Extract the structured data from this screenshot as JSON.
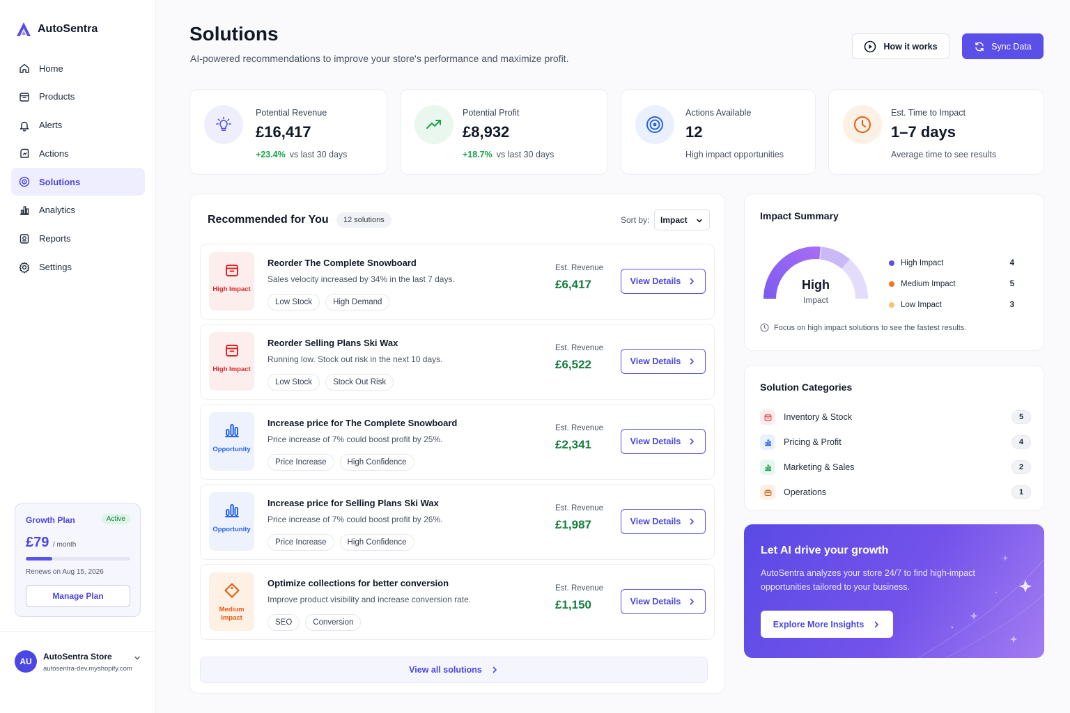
{
  "brand": {
    "name": "AutoSentra"
  },
  "nav": [
    {
      "label": "Home",
      "icon": "home-icon"
    },
    {
      "label": "Products",
      "icon": "box-icon"
    },
    {
      "label": "Alerts",
      "icon": "bell-icon"
    },
    {
      "label": "Actions",
      "icon": "actions-icon"
    },
    {
      "label": "Solutions",
      "icon": "solutions-icon",
      "active": true
    },
    {
      "label": "Analytics",
      "icon": "bar-chart-icon"
    },
    {
      "label": "Reports",
      "icon": "report-icon"
    },
    {
      "label": "Settings",
      "icon": "gear-icon"
    }
  ],
  "plan": {
    "name": "Growth Plan",
    "status": "Active",
    "price": "£79",
    "period": "/ month",
    "usage_fraction": 0.25,
    "renews": "Renews on Aug 15, 2026",
    "manage_label": "Manage Plan"
  },
  "store": {
    "initials": "AU",
    "name": "AutoSentra Store",
    "url": "autosentra-dev.myshopify.com"
  },
  "header": {
    "title": "Solutions",
    "subtitle": "AI-powered recommendations to improve your store's performance and maximize profit.",
    "how_label": "How it works",
    "sync_label": "Sync Data"
  },
  "stats": [
    {
      "label": "Potential Revenue",
      "value": "£16,417",
      "change": "+23.4%",
      "foot": "vs last 30 days",
      "icon": "lightbulb-icon"
    },
    {
      "label": "Potential Profit",
      "value": "£8,932",
      "change": "+18.7%",
      "foot": "vs last 30 days",
      "icon": "trend-up-icon"
    },
    {
      "label": "Actions Available",
      "value": "12",
      "change": "",
      "foot": "High impact opportunities",
      "icon": "target-icon"
    },
    {
      "label": "Est. Time to Impact",
      "value": "1–7 days",
      "change": "",
      "foot": "Average time to see results",
      "icon": "clock-icon"
    }
  ],
  "recommended": {
    "title": "Recommended for You",
    "count": "12 solutions",
    "sort_label": "Sort by:",
    "sort_value": "Impact",
    "est_label": "Est. Revenue",
    "button_label": "View Details",
    "view_all": "View all solutions",
    "items": [
      {
        "badge": "High Impact",
        "kind": "high",
        "title": "Reorder The Complete Snowboard",
        "desc": "Sales velocity increased by 34% in the last 7 days.",
        "tags": [
          "Low Stock",
          "High Demand"
        ],
        "revenue": "£6,417"
      },
      {
        "badge": "High Impact",
        "kind": "high",
        "title": "Reorder Selling Plans Ski Wax",
        "desc": "Running low. Stock out risk in the next 10 days.",
        "tags": [
          "Low Stock",
          "Stock Out Risk"
        ],
        "revenue": "£6,522"
      },
      {
        "badge": "Opportunity",
        "kind": "opp",
        "title": "Increase price for The Complete Snowboard",
        "desc": "Price increase of 7% could boost profit by 25%.",
        "tags": [
          "Price Increase",
          "High Confidence"
        ],
        "revenue": "£2,341"
      },
      {
        "badge": "Opportunity",
        "kind": "opp",
        "title": "Increase price for Selling Plans Ski Wax",
        "desc": "Price increase of 7% could boost profit by 26%.",
        "tags": [
          "Price Increase",
          "High Confidence"
        ],
        "revenue": "£1,987"
      },
      {
        "badge": "Medium Impact",
        "kind": "med",
        "title": "Optimize collections for better conversion",
        "desc": "Improve product visibility and increase conversion rate.",
        "tags": [
          "SEO",
          "Conversion"
        ],
        "revenue": "£1,150"
      }
    ]
  },
  "impact": {
    "title": "Impact Summary",
    "level": "High",
    "level_sub": "Impact",
    "legend": [
      {
        "label": "High Impact",
        "count": 4,
        "color": "#5b4fe9"
      },
      {
        "label": "Medium Impact",
        "count": 5,
        "color": "#f97316"
      },
      {
        "label": "Low Impact",
        "count": 3,
        "color": "#fbbf77"
      }
    ],
    "note": "Focus on high impact solutions to see the fastest results."
  },
  "categories": {
    "title": "Solution Categories",
    "items": [
      {
        "label": "Inventory & Stock",
        "count": "5",
        "icon": "box-icon",
        "color": "#dc2626",
        "bg": "#fdecec"
      },
      {
        "label": "Pricing & Profit",
        "count": "4",
        "icon": "bar-chart-icon",
        "color": "#2563eb",
        "bg": "#eaf0fd"
      },
      {
        "label": "Marketing & Sales",
        "count": "2",
        "icon": "bar-chart-icon",
        "color": "#16a34a",
        "bg": "#e8f7ee"
      },
      {
        "label": "Operations",
        "count": "1",
        "icon": "briefcase-icon",
        "color": "#ea580c",
        "bg": "#fdf0e6"
      }
    ]
  },
  "promo": {
    "title": "Let AI drive your growth",
    "body": "AutoSentra analyzes your store 24/7 to find high-impact opportunities tailored to your business.",
    "button": "Explore More Insights"
  }
}
